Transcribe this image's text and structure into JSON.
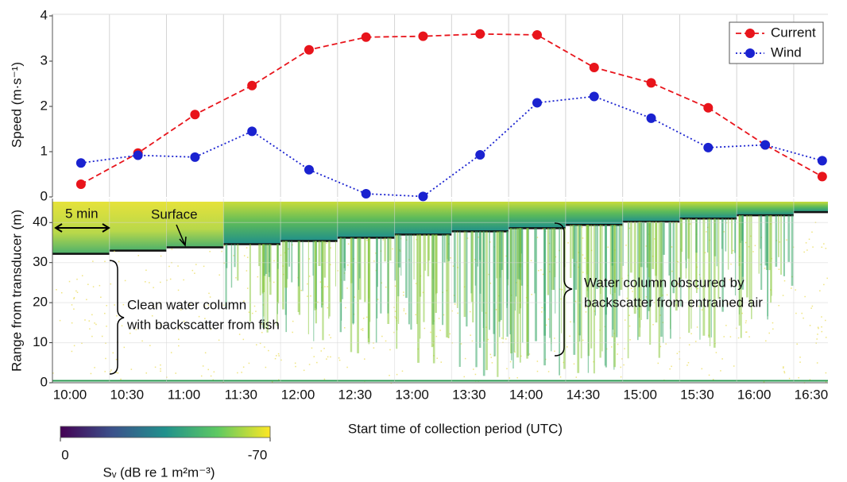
{
  "chart_data": [
    {
      "type": "line",
      "ylabel": "Speed (m·s⁻¹)",
      "x": [
        10.25,
        10.75,
        11.25,
        11.75,
        12.25,
        12.75,
        13.25,
        13.75,
        14.25,
        14.75,
        15.25,
        15.75,
        16.25,
        16.75
      ],
      "series": [
        {
          "name": "Current",
          "color": "#e8141b",
          "dash": "dashed",
          "values": [
            0.28,
            0.97,
            1.82,
            2.46,
            3.25,
            3.53,
            3.55,
            3.6,
            3.58,
            2.86,
            2.52,
            1.97,
            1.15,
            0.45
          ]
        },
        {
          "name": "Wind",
          "color": "#1a22d0",
          "dash": "dotted",
          "values": [
            0.75,
            0.92,
            0.88,
            1.45,
            0.6,
            0.07,
            0.01,
            0.93,
            2.08,
            2.22,
            1.74,
            1.09,
            1.15,
            0.8
          ]
        }
      ],
      "ylim": [
        0,
        4
      ],
      "yticks": [
        0,
        1,
        2,
        3,
        4
      ],
      "grid": true,
      "legend": "top-right"
    },
    {
      "type": "echogram",
      "ylabel": "Range from transducer (m)",
      "xlabel": "Start time of collection period (UTC)",
      "xlim": [
        10,
        16.8
      ],
      "xticks": [
        {
          "value": 10,
          "label": "10:00"
        },
        {
          "value": 10.5,
          "label": "10:30"
        },
        {
          "value": 11,
          "label": "11:00"
        },
        {
          "value": 11.5,
          "label": "11:30"
        },
        {
          "value": 12,
          "label": "12:00"
        },
        {
          "value": 12.5,
          "label": "12:30"
        },
        {
          "value": 13,
          "label": "13:00"
        },
        {
          "value": 13.5,
          "label": "13:30"
        },
        {
          "value": 14,
          "label": "14:00"
        },
        {
          "value": 14.5,
          "label": "14:30"
        },
        {
          "value": 15,
          "label": "15:00"
        },
        {
          "value": 15.5,
          "label": "15:30"
        },
        {
          "value": 16,
          "label": "16:00"
        },
        {
          "value": 16.5,
          "label": "16:30"
        }
      ],
      "ylim": [
        0,
        46
      ],
      "yticks": [
        0,
        10,
        20,
        30,
        40
      ],
      "grid": true,
      "annotations": [
        "5 min",
        "Surface",
        "Clean water column",
        "with backscatter from fish",
        "Water column obscured by",
        "backscatter from entrained air"
      ],
      "colorbar": {
        "lim": [
          0,
          -70
        ],
        "ticks": [
          0,
          -70
        ],
        "label": "Sᵥ (dB re 1 m²m⁻³)"
      }
    }
  ]
}
